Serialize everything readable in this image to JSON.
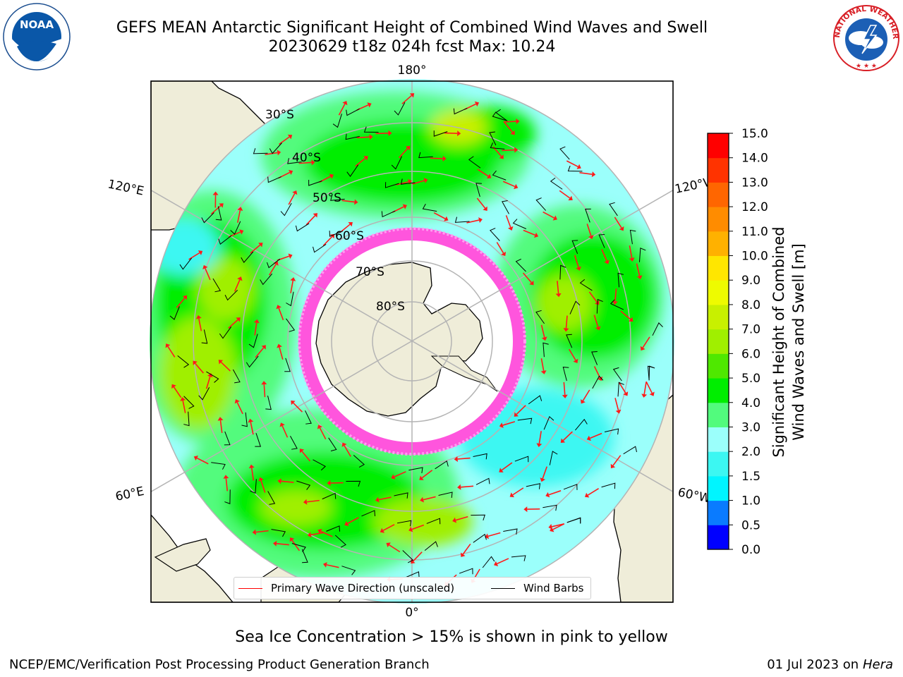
{
  "title": {
    "line1": "GEFS MEAN Antarctic Significant Height of Combined Wind Waves and Swell",
    "line2": "20230629 t18z 024h fcst   Max: 10.24"
  },
  "logos": {
    "noaa": "NOAA",
    "nws": "NATIONAL WEATHER SERVICE"
  },
  "map": {
    "projection": "south-polar-stereographic",
    "lat_labels": [
      "30°S",
      "40°S",
      "50°S",
      "60°S",
      "70°S",
      "80°S"
    ],
    "lon_labels": {
      "top": "180°",
      "bottom": "0°",
      "upper_left": "120°E",
      "upper_right": "120°W",
      "lower_left": "60°E",
      "lower_right": "60°W"
    },
    "colors": {
      "land": "#efedd9",
      "sea_ice": "#ff55dd",
      "gridline": "#b4b4b4"
    }
  },
  "colorbar": {
    "label_line1": "Significant Height of Combined",
    "label_line2": "Wind Waves and Swell [m]",
    "ticks": [
      "0.0",
      "0.5",
      "1.0",
      "1.5",
      "2.0",
      "3.0",
      "4.0",
      "5.0",
      "6.0",
      "7.0",
      "8.0",
      "9.0",
      "10.0",
      "11.0",
      "12.0",
      "13.0",
      "14.0",
      "15.0"
    ],
    "colors": [
      "#0000ff",
      "#0a7bff",
      "#00f5ff",
      "#3cf7f2",
      "#9bfffb",
      "#52fb7d",
      "#00ee00",
      "#4fe800",
      "#a0ef00",
      "#c8f000",
      "#eefb00",
      "#ffe600",
      "#ffb100",
      "#ff8c00",
      "#ff6600",
      "#ff3300",
      "#ff0000"
    ]
  },
  "legend": {
    "wave_direction": "Primary Wave Direction (unscaled)",
    "wind_barbs": "Wind Barbs",
    "wave_color": "#ff0000",
    "barb_color": "#000000"
  },
  "notes": {
    "sea_ice": "Sea Ice Concentration > 15% is shown in pink to yellow",
    "footer_left": "NCEP/EMC/Verification Post Processing Product Generation Branch",
    "footer_date": "01 Jul 2023 on",
    "footer_machine": "Hera"
  }
}
